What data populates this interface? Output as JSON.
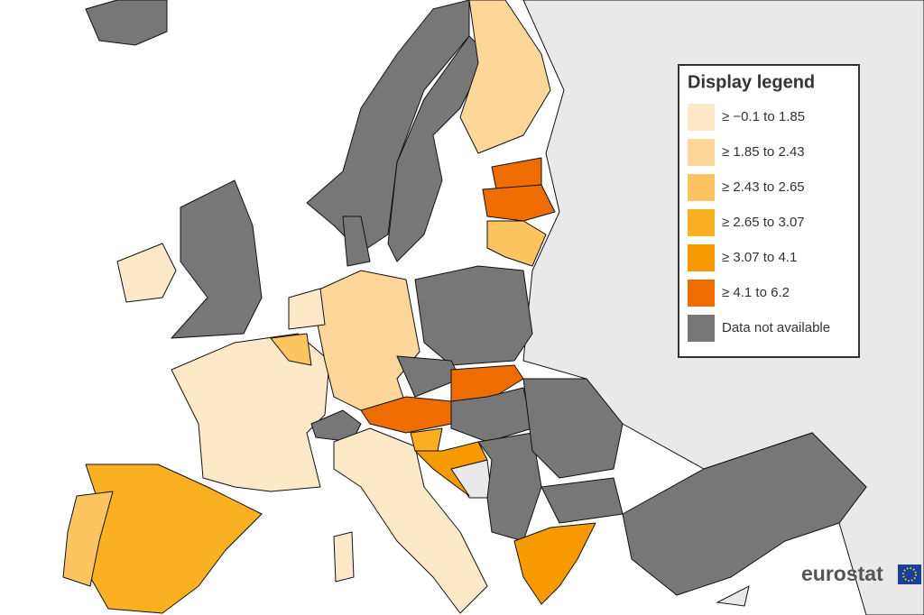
{
  "legend": {
    "title": "Display legend",
    "items": [
      {
        "label": "≥ −0.1 to 1.85",
        "color": "#fde9c8"
      },
      {
        "label": "≥ 1.85 to 2.43",
        "color": "#fdd79a"
      },
      {
        "label": "≥ 2.43 to 2.65",
        "color": "#fdc462"
      },
      {
        "label": "≥ 2.65 to 3.07",
        "color": "#fbb022"
      },
      {
        "label": "≥ 3.07 to 4.1",
        "color": "#f79a00"
      },
      {
        "label": "≥ 4.1 to 6.2",
        "color": "#ef6c00"
      },
      {
        "label": "Data not available",
        "color": "#777777"
      }
    ]
  },
  "logo": "eurostat"
}
